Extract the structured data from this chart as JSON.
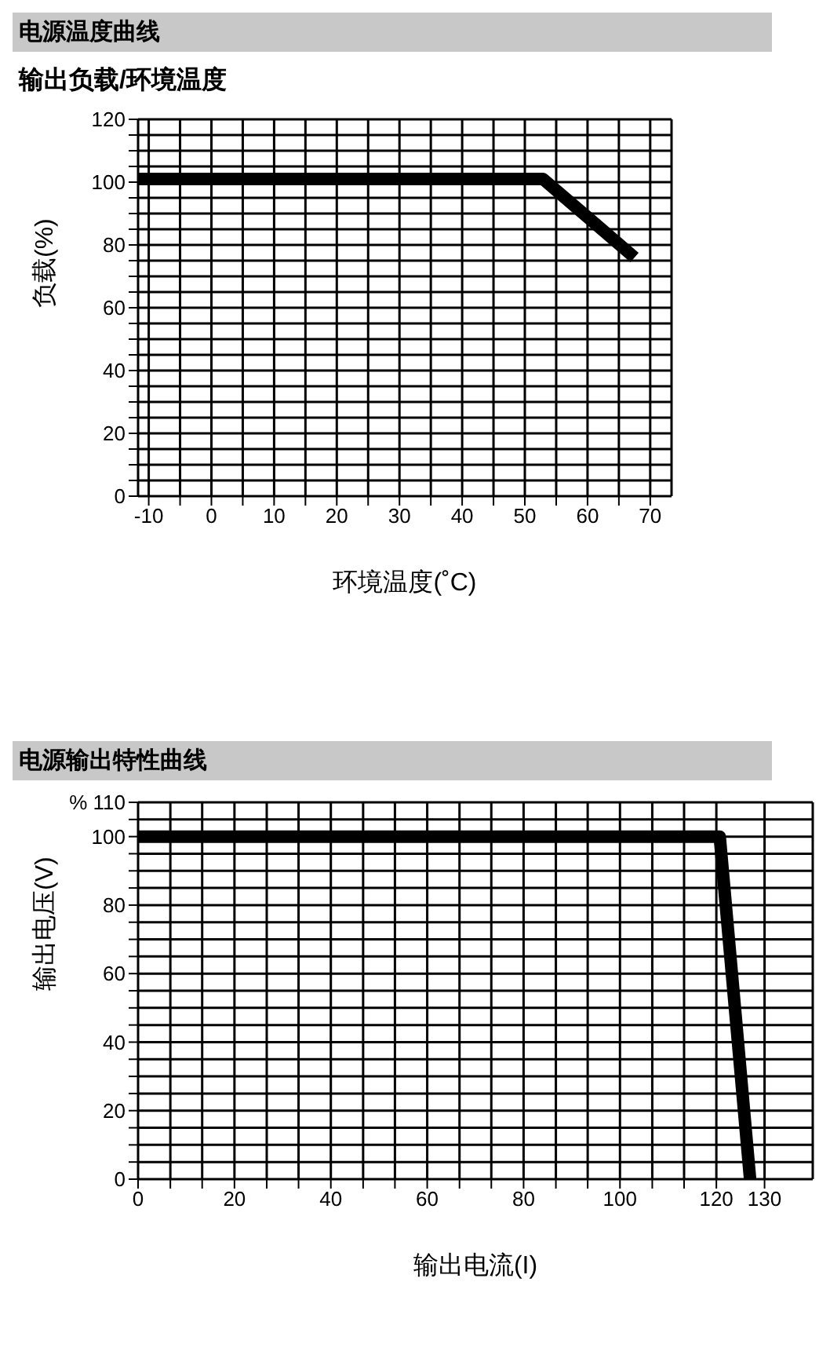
{
  "chart_data": [
    {
      "type": "line",
      "title": "电源温度曲线",
      "subtitle": "输出负载/环境温度",
      "xlabel": "环境温度(˚C)",
      "ylabel": "负载(%)",
      "x": [
        -11.7,
        52.9,
        67.5
      ],
      "series": [
        {
          "color": "#000000",
          "values": [
            101,
            101,
            76
          ]
        }
      ],
      "xlim": [
        -11.7,
        73.4
      ],
      "xticks": [
        -10,
        {
          "value": -5,
          "label": null
        },
        0,
        {
          "value": 5,
          "label": null
        },
        10,
        {
          "value": 15,
          "label": null
        },
        20,
        {
          "value": 25,
          "label": null
        },
        30,
        {
          "value": 35,
          "label": null
        },
        40,
        {
          "value": 45,
          "label": null
        },
        50,
        {
          "value": 55,
          "label": null
        },
        60,
        {
          "value": 65,
          "label": null
        },
        70
      ],
      "ylim": [
        0,
        120
      ],
      "yticks": [
        0,
        {
          "value": 5,
          "label": null
        },
        {
          "value": 10,
          "label": null
        },
        {
          "value": 15,
          "label": null
        },
        20,
        {
          "value": 25,
          "label": null
        },
        {
          "value": 30,
          "label": null
        },
        {
          "value": 35,
          "label": null
        },
        40,
        {
          "value": 45,
          "label": null
        },
        {
          "value": 50,
          "label": null
        },
        {
          "value": 55,
          "label": null
        },
        60,
        {
          "value": 65,
          "label": null
        },
        {
          "value": 70,
          "label": null
        },
        {
          "value": 75,
          "label": null
        },
        80,
        {
          "value": 85,
          "label": null
        },
        {
          "value": 90,
          "label": null
        },
        {
          "value": 95,
          "label": null
        },
        100,
        {
          "value": 105,
          "label": null
        },
        {
          "value": 110,
          "label": null
        },
        {
          "value": 115,
          "label": null
        },
        120
      ],
      "grid": true
    },
    {
      "type": "line",
      "title": "电源输出特性曲线",
      "xlabel": "输出电流(I)",
      "ylabel": "输出电压(V)",
      "x": [
        0,
        120.7,
        127
      ],
      "series": [
        {
          "color": "#000000",
          "values": [
            100,
            100,
            0
          ]
        }
      ],
      "xlim": [
        0,
        140
      ],
      "xticks": [
        0,
        {
          "value": 6.7,
          "label": null
        },
        {
          "value": 13.3,
          "label": null
        },
        20,
        {
          "value": 26.7,
          "label": null
        },
        {
          "value": 33.3,
          "label": null
        },
        40,
        {
          "value": 46.7,
          "label": null
        },
        {
          "value": 53.3,
          "label": null
        },
        60,
        {
          "value": 66.7,
          "label": null
        },
        {
          "value": 73.3,
          "label": null
        },
        80,
        {
          "value": 86.7,
          "label": null
        },
        {
          "value": 93.3,
          "label": null
        },
        100,
        {
          "value": 106.7,
          "label": null
        },
        {
          "value": 113.3,
          "label": null
        },
        120,
        130
      ],
      "ylim": [
        0,
        110
      ],
      "yticks": [
        0,
        {
          "value": 5,
          "label": null
        },
        {
          "value": 10,
          "label": null
        },
        {
          "value": 15,
          "label": null
        },
        20,
        {
          "value": 25,
          "label": null
        },
        {
          "value": 30,
          "label": null
        },
        {
          "value": 35,
          "label": null
        },
        40,
        {
          "value": 45,
          "label": null
        },
        {
          "value": 50,
          "label": null
        },
        {
          "value": 55,
          "label": null
        },
        60,
        {
          "value": 65,
          "label": null
        },
        {
          "value": 70,
          "label": null
        },
        {
          "value": 75,
          "label": null
        },
        80,
        {
          "value": 85,
          "label": null
        },
        {
          "value": 90,
          "label": null
        },
        {
          "value": 95,
          "label": null
        },
        100,
        {
          "value": 105,
          "label": null
        },
        {
          "value": 110,
          "label": "% 110"
        }
      ],
      "grid": true
    }
  ]
}
